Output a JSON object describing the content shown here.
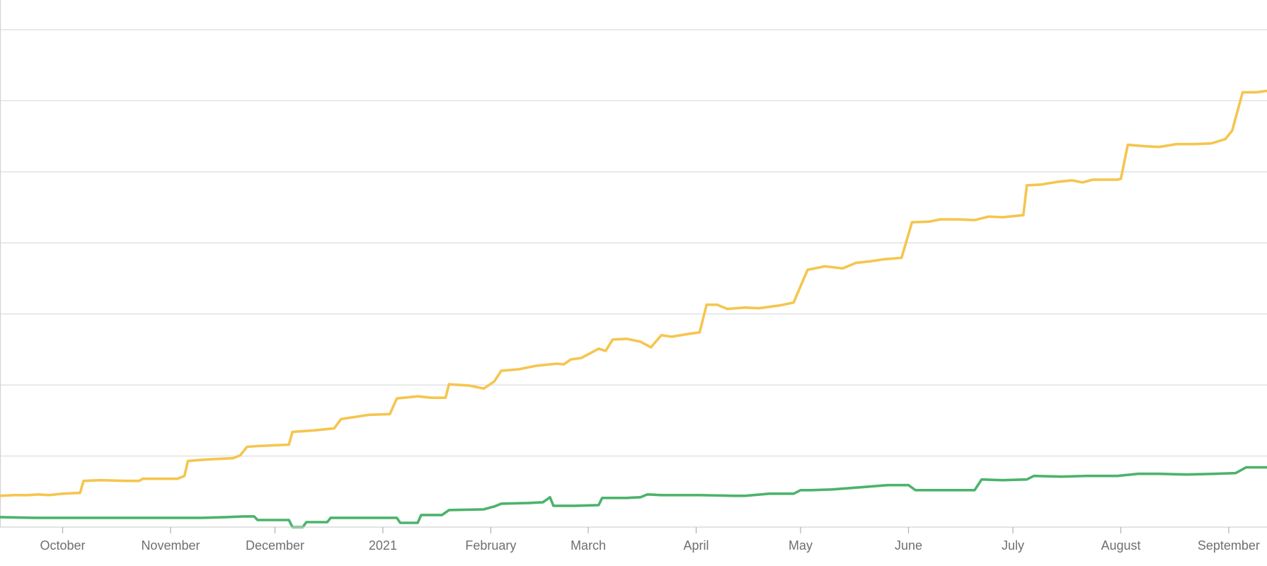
{
  "chart_data": {
    "type": "line",
    "title": "",
    "xlabel": "",
    "ylabel": "",
    "x_axis": {
      "type": "date",
      "range": [
        "2020-09-13",
        "2021-09-12"
      ],
      "ticks": [
        {
          "date": "2020-10-01",
          "label": "October"
        },
        {
          "date": "2020-11-01",
          "label": "November"
        },
        {
          "date": "2020-12-01",
          "label": "December"
        },
        {
          "date": "2021-01-01",
          "label": "2021"
        },
        {
          "date": "2021-02-01",
          "label": "February"
        },
        {
          "date": "2021-03-01",
          "label": "March"
        },
        {
          "date": "2021-04-01",
          "label": "April"
        },
        {
          "date": "2021-05-01",
          "label": "May"
        },
        {
          "date": "2021-06-01",
          "label": "June"
        },
        {
          "date": "2021-07-01",
          "label": "July"
        },
        {
          "date": "2021-08-01",
          "label": "August"
        },
        {
          "date": "2021-09-01",
          "label": "September"
        }
      ]
    },
    "y_axis": {
      "range": [
        0,
        7
      ],
      "gridlines": [
        1,
        2,
        3,
        4,
        5,
        6,
        7
      ],
      "tick_labels_shown": false
    },
    "grid": true,
    "legend": "none",
    "series": [
      {
        "color": "#f5c54e",
        "points": [
          [
            "2020-09-13",
            0.44
          ],
          [
            "2020-09-17",
            0.45
          ],
          [
            "2020-09-21",
            0.45
          ],
          [
            "2020-09-24",
            0.46
          ],
          [
            "2020-09-27",
            0.45
          ],
          [
            "2020-10-01",
            0.47
          ],
          [
            "2020-10-05",
            0.48
          ],
          [
            "2020-10-06",
            0.48
          ],
          [
            "2020-10-07",
            0.65
          ],
          [
            "2020-10-12",
            0.66
          ],
          [
            "2020-10-19",
            0.65
          ],
          [
            "2020-10-23",
            0.65
          ],
          [
            "2020-10-24",
            0.68
          ],
          [
            "2020-10-31",
            0.68
          ],
          [
            "2020-11-03",
            0.68
          ],
          [
            "2020-11-05",
            0.72
          ],
          [
            "2020-11-06",
            0.93
          ],
          [
            "2020-11-11",
            0.95
          ],
          [
            "2020-11-19",
            0.97
          ],
          [
            "2020-11-21",
            1.01
          ],
          [
            "2020-11-23",
            1.13
          ],
          [
            "2020-11-26",
            1.14
          ],
          [
            "2020-12-05",
            1.16
          ],
          [
            "2020-12-06",
            1.34
          ],
          [
            "2020-12-12",
            1.36
          ],
          [
            "2020-12-18",
            1.39
          ],
          [
            "2020-12-20",
            1.52
          ],
          [
            "2020-12-28",
            1.58
          ],
          [
            "2021-01-03",
            1.59
          ],
          [
            "2021-01-05",
            1.81
          ],
          [
            "2021-01-11",
            1.84
          ],
          [
            "2021-01-15",
            1.82
          ],
          [
            "2021-01-19",
            1.82
          ],
          [
            "2021-01-20",
            2.01
          ],
          [
            "2021-01-26",
            1.99
          ],
          [
            "2021-01-30",
            1.95
          ],
          [
            "2021-02-02",
            2.05
          ],
          [
            "2021-02-04",
            2.2
          ],
          [
            "2021-02-09",
            2.22
          ],
          [
            "2021-02-14",
            2.27
          ],
          [
            "2021-02-20",
            2.3
          ],
          [
            "2021-02-22",
            2.29
          ],
          [
            "2021-02-24",
            2.36
          ],
          [
            "2021-02-27",
            2.38
          ],
          [
            "2021-03-04",
            2.51
          ],
          [
            "2021-03-06",
            2.48
          ],
          [
            "2021-03-08",
            2.64
          ],
          [
            "2021-03-12",
            2.65
          ],
          [
            "2021-03-16",
            2.61
          ],
          [
            "2021-03-19",
            2.53
          ],
          [
            "2021-03-22",
            2.7
          ],
          [
            "2021-03-25",
            2.68
          ],
          [
            "2021-03-30",
            2.72
          ],
          [
            "2021-04-02",
            2.74
          ],
          [
            "2021-04-04",
            3.13
          ],
          [
            "2021-04-07",
            3.13
          ],
          [
            "2021-04-10",
            3.07
          ],
          [
            "2021-04-15",
            3.09
          ],
          [
            "2021-04-19",
            3.08
          ],
          [
            "2021-04-25",
            3.12
          ],
          [
            "2021-04-29",
            3.16
          ],
          [
            "2021-05-03",
            3.62
          ],
          [
            "2021-05-08",
            3.67
          ],
          [
            "2021-05-13",
            3.64
          ],
          [
            "2021-05-17",
            3.72
          ],
          [
            "2021-05-21",
            3.74
          ],
          [
            "2021-05-25",
            3.77
          ],
          [
            "2021-05-30",
            3.79
          ],
          [
            "2021-06-02",
            4.29
          ],
          [
            "2021-06-07",
            4.3
          ],
          [
            "2021-06-10",
            4.33
          ],
          [
            "2021-06-15",
            4.33
          ],
          [
            "2021-06-20",
            4.32
          ],
          [
            "2021-06-24",
            4.37
          ],
          [
            "2021-06-28",
            4.36
          ],
          [
            "2021-07-04",
            4.39
          ],
          [
            "2021-07-05",
            4.81
          ],
          [
            "2021-07-09",
            4.82
          ],
          [
            "2021-07-14",
            4.86
          ],
          [
            "2021-07-18",
            4.88
          ],
          [
            "2021-07-21",
            4.85
          ],
          [
            "2021-07-24",
            4.89
          ],
          [
            "2021-07-31",
            4.89
          ],
          [
            "2021-08-01",
            4.9
          ],
          [
            "2021-08-03",
            5.38
          ],
          [
            "2021-08-08",
            5.36
          ],
          [
            "2021-08-12",
            5.35
          ],
          [
            "2021-08-17",
            5.39
          ],
          [
            "2021-08-22",
            5.39
          ],
          [
            "2021-08-27",
            5.4
          ],
          [
            "2021-08-31",
            5.46
          ],
          [
            "2021-09-02",
            5.58
          ],
          [
            "2021-09-05",
            6.12
          ],
          [
            "2021-09-09",
            6.12
          ],
          [
            "2021-09-12",
            6.14
          ]
        ]
      },
      {
        "color": "#4cb36b",
        "points": [
          [
            "2020-09-13",
            0.14
          ],
          [
            "2020-09-23",
            0.13
          ],
          [
            "2020-10-10",
            0.13
          ],
          [
            "2020-10-26",
            0.13
          ],
          [
            "2020-11-10",
            0.13
          ],
          [
            "2020-11-17",
            0.14
          ],
          [
            "2020-11-22",
            0.15
          ],
          [
            "2020-11-25",
            0.15
          ],
          [
            "2020-11-26",
            0.1
          ],
          [
            "2020-12-05",
            0.1
          ],
          [
            "2020-12-06",
            0.0
          ],
          [
            "2020-12-09",
            0.0
          ],
          [
            "2020-12-10",
            0.07
          ],
          [
            "2020-12-16",
            0.07
          ],
          [
            "2020-12-17",
            0.13
          ],
          [
            "2021-01-05",
            0.13
          ],
          [
            "2021-01-06",
            0.06
          ],
          [
            "2021-01-11",
            0.06
          ],
          [
            "2021-01-12",
            0.17
          ],
          [
            "2021-01-18",
            0.17
          ],
          [
            "2021-01-20",
            0.24
          ],
          [
            "2021-01-30",
            0.25
          ],
          [
            "2021-02-02",
            0.29
          ],
          [
            "2021-02-04",
            0.33
          ],
          [
            "2021-02-12",
            0.34
          ],
          [
            "2021-02-16",
            0.35
          ],
          [
            "2021-02-18",
            0.42
          ],
          [
            "2021-02-19",
            0.3
          ],
          [
            "2021-02-25",
            0.3
          ],
          [
            "2021-03-04",
            0.31
          ],
          [
            "2021-03-05",
            0.41
          ],
          [
            "2021-03-12",
            0.41
          ],
          [
            "2021-03-16",
            0.42
          ],
          [
            "2021-03-18",
            0.46
          ],
          [
            "2021-03-22",
            0.45
          ],
          [
            "2021-03-28",
            0.45
          ],
          [
            "2021-04-02",
            0.45
          ],
          [
            "2021-04-12",
            0.44
          ],
          [
            "2021-04-15",
            0.44
          ],
          [
            "2021-04-22",
            0.47
          ],
          [
            "2021-04-29",
            0.47
          ],
          [
            "2021-05-01",
            0.52
          ],
          [
            "2021-05-04",
            0.52
          ],
          [
            "2021-05-10",
            0.53
          ],
          [
            "2021-05-18",
            0.56
          ],
          [
            "2021-05-26",
            0.59
          ],
          [
            "2021-06-01",
            0.59
          ],
          [
            "2021-06-03",
            0.52
          ],
          [
            "2021-06-12",
            0.52
          ],
          [
            "2021-06-20",
            0.52
          ],
          [
            "2021-06-22",
            0.67
          ],
          [
            "2021-06-28",
            0.66
          ],
          [
            "2021-07-05",
            0.67
          ],
          [
            "2021-07-07",
            0.72
          ],
          [
            "2021-07-15",
            0.71
          ],
          [
            "2021-07-22",
            0.72
          ],
          [
            "2021-07-31",
            0.72
          ],
          [
            "2021-08-06",
            0.75
          ],
          [
            "2021-08-12",
            0.75
          ],
          [
            "2021-08-20",
            0.74
          ],
          [
            "2021-08-28",
            0.75
          ],
          [
            "2021-09-03",
            0.76
          ],
          [
            "2021-09-06",
            0.84
          ],
          [
            "2021-09-12",
            0.84
          ]
        ]
      }
    ]
  }
}
